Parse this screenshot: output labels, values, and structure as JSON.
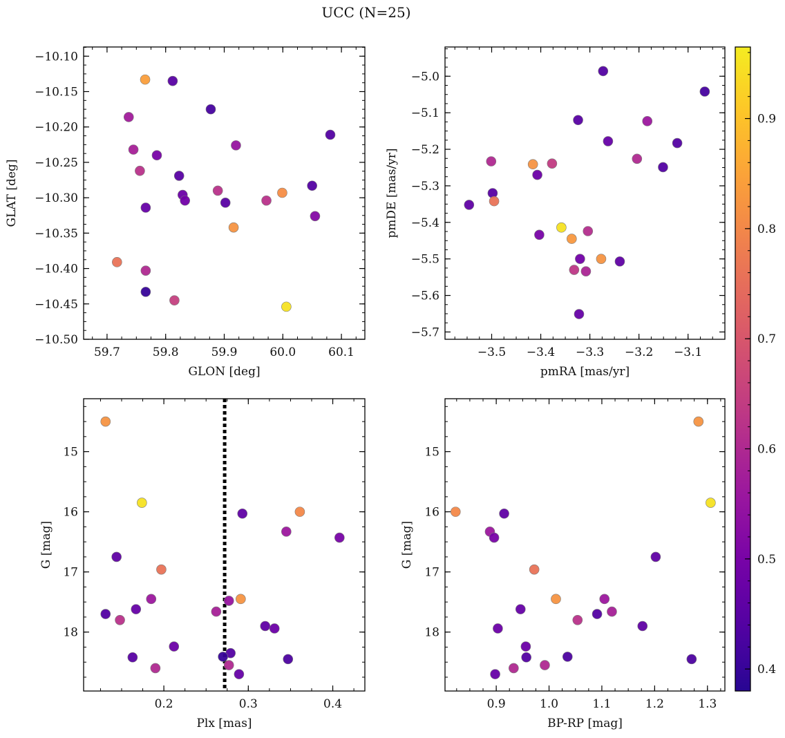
{
  "figure": {
    "title": "UCC (N=25)"
  },
  "colorbar": {
    "range": [
      0.38,
      0.965
    ],
    "ticks": [
      0.4,
      0.5,
      0.6,
      0.7,
      0.8,
      0.9
    ],
    "colormap": "plasma",
    "stops": [
      "#0d0887",
      "#46039f",
      "#7201a8",
      "#9c179e",
      "#bd3786",
      "#d8576b",
      "#ed7953",
      "#fb9f3a",
      "#fdca26",
      "#f0f921"
    ]
  },
  "chart_data": [
    {
      "type": "scatter",
      "xlabel": "GLON [deg]",
      "ylabel": "GLAT [deg]",
      "xlim": [
        59.66,
        60.14
      ],
      "ylim": [
        -10.5,
        -10.087
      ],
      "xticks": [
        59.7,
        59.8,
        59.9,
        60.0,
        60.1
      ],
      "xtick_labels": [
        "59.7",
        "59.8",
        "59.9",
        "60.0",
        "60.1"
      ],
      "yticks": [
        -10.5,
        -10.45,
        -10.4,
        -10.35,
        -10.3,
        -10.25,
        -10.2,
        -10.15,
        -10.1
      ],
      "ytick_labels": [
        "−10.50",
        "−10.45",
        "−10.40",
        "−10.35",
        "−10.30",
        "−10.25",
        "−10.20",
        "−10.15",
        "−10.10"
      ],
      "x": [
        59.765,
        59.812,
        59.877,
        59.737,
        59.92,
        60.081,
        59.745,
        59.785,
        59.756,
        59.823,
        59.829,
        59.833,
        59.889,
        59.902,
        59.972,
        59.999,
        60.05,
        59.766,
        59.916,
        60.055,
        59.717,
        59.766,
        59.766,
        59.815,
        60.006
      ],
      "y": [
        -10.133,
        -10.135,
        -10.175,
        -10.186,
        -10.226,
        -10.211,
        -10.232,
        -10.24,
        -10.262,
        -10.269,
        -10.296,
        -10.304,
        -10.29,
        -10.307,
        -10.304,
        -10.293,
        -10.283,
        -10.314,
        -10.342,
        -10.326,
        -10.391,
        -10.403,
        -10.433,
        -10.445,
        -10.454
      ],
      "c": [
        0.84,
        0.45,
        0.42,
        0.57,
        0.55,
        0.44,
        0.58,
        0.5,
        0.62,
        0.45,
        0.48,
        0.49,
        0.62,
        0.45,
        0.62,
        0.81,
        0.44,
        0.47,
        0.82,
        0.52,
        0.76,
        0.6,
        0.4,
        0.65,
        0.95
      ]
    },
    {
      "type": "scatter",
      "xlabel": "pmRA [mas/yr]",
      "ylabel": "pmDE [mas/yr]",
      "xlim": [
        -3.595,
        -3.025
      ],
      "ylim": [
        -5.72,
        -4.92
      ],
      "xticks": [
        -3.5,
        -3.4,
        -3.3,
        -3.2,
        -3.1
      ],
      "xtick_labels": [
        "−3.5",
        "−3.4",
        "−3.3",
        "−3.2",
        "−3.1"
      ],
      "yticks": [
        -5.7,
        -5.6,
        -5.5,
        -5.4,
        -5.3,
        -5.2,
        -5.1,
        -5.0
      ],
      "ytick_labels": [
        "−5.7",
        "−5.6",
        "−5.5",
        "−5.4",
        "−5.3",
        "−5.2",
        "−5.1",
        "−5.0"
      ],
      "x": [
        -3.273,
        -3.066,
        -3.324,
        -3.183,
        -3.263,
        -3.122,
        -3.501,
        -3.416,
        -3.377,
        -3.204,
        -3.151,
        -3.407,
        -3.498,
        -3.495,
        -3.546,
        -3.358,
        -3.403,
        -3.337,
        -3.304,
        -3.32,
        -3.277,
        -3.239,
        -3.332,
        -3.308,
        -3.322
      ],
      "y": [
        -4.986,
        -5.042,
        -5.12,
        -5.123,
        -5.178,
        -5.183,
        -5.233,
        -5.241,
        -5.239,
        -5.226,
        -5.249,
        -5.27,
        -5.32,
        -5.342,
        -5.352,
        -5.414,
        -5.434,
        -5.445,
        -5.424,
        -5.5,
        -5.5,
        -5.507,
        -5.53,
        -5.534,
        -5.651
      ],
      "c": [
        0.44,
        0.42,
        0.45,
        0.56,
        0.47,
        0.44,
        0.6,
        0.82,
        0.64,
        0.6,
        0.44,
        0.48,
        0.45,
        0.76,
        0.46,
        0.95,
        0.5,
        0.83,
        0.61,
        0.49,
        0.82,
        0.46,
        0.63,
        0.59,
        0.47
      ]
    },
    {
      "type": "scatter",
      "xlabel": "Plx [mas]",
      "ylabel": "G [mag]",
      "xlim": [
        0.105,
        0.438
      ],
      "ylim": [
        18.98,
        14.12
      ],
      "y_inverted": true,
      "xticks": [
        0.2,
        0.3,
        0.4
      ],
      "xtick_labels": [
        "0.2",
        "0.3",
        "0.4"
      ],
      "yticks": [
        15,
        16,
        17,
        18
      ],
      "ytick_labels": [
        "15",
        "16",
        "17",
        "18"
      ],
      "vline": {
        "x": 0.272,
        "style": "dotted"
      },
      "x": [
        0.131,
        0.174,
        0.293,
        0.361,
        0.345,
        0.408,
        0.144,
        0.197,
        0.185,
        0.291,
        0.277,
        0.262,
        0.167,
        0.131,
        0.148,
        0.32,
        0.331,
        0.212,
        0.279,
        0.27,
        0.163,
        0.347,
        0.277,
        0.19,
        0.289
      ],
      "y": [
        14.5,
        15.85,
        16.03,
        16.0,
        16.33,
        16.43,
        16.75,
        16.96,
        17.45,
        17.45,
        17.48,
        17.66,
        17.62,
        17.7,
        17.8,
        17.9,
        17.94,
        18.24,
        18.35,
        18.41,
        18.42,
        18.45,
        18.55,
        18.6,
        18.7
      ],
      "c": [
        0.82,
        0.95,
        0.46,
        0.8,
        0.56,
        0.5,
        0.46,
        0.76,
        0.56,
        0.82,
        0.55,
        0.58,
        0.47,
        0.44,
        0.62,
        0.46,
        0.48,
        0.48,
        0.44,
        0.4,
        0.45,
        0.43,
        0.6,
        0.6,
        0.47
      ]
    },
    {
      "type": "scatter",
      "xlabel": "BP-RP [mag]",
      "ylabel": "G [mag]",
      "xlim": [
        0.803,
        1.333
      ],
      "ylim": [
        18.98,
        14.12
      ],
      "y_inverted": true,
      "xticks": [
        0.9,
        1.0,
        1.1,
        1.2,
        1.3
      ],
      "xtick_labels": [
        "0.9",
        "1.0",
        "1.1",
        "1.2",
        "1.3"
      ],
      "yticks": [
        15,
        16,
        17,
        18
      ],
      "ytick_labels": [
        "15",
        "16",
        "17",
        "18"
      ],
      "x": [
        1.283,
        1.306,
        0.823,
        0.915,
        0.888,
        0.896,
        1.202,
        0.972,
        1.105,
        1.013,
        1.119,
        1.091,
        0.946,
        1.177,
        1.054,
        0.903,
        0.956,
        1.035,
        0.957,
        1.27,
        0.992,
        0.933,
        0.898
      ],
      "y": [
        14.5,
        15.85,
        16.0,
        16.03,
        16.33,
        16.43,
        16.75,
        16.96,
        17.45,
        17.45,
        17.66,
        17.7,
        17.62,
        17.9,
        17.8,
        17.94,
        18.24,
        18.41,
        18.42,
        18.45,
        18.55,
        18.6,
        18.7
      ],
      "c": [
        0.82,
        0.95,
        0.8,
        0.46,
        0.56,
        0.5,
        0.46,
        0.76,
        0.56,
        0.82,
        0.58,
        0.44,
        0.47,
        0.46,
        0.62,
        0.48,
        0.48,
        0.43,
        0.44,
        0.43,
        0.6,
        0.6,
        0.47
      ]
    }
  ]
}
